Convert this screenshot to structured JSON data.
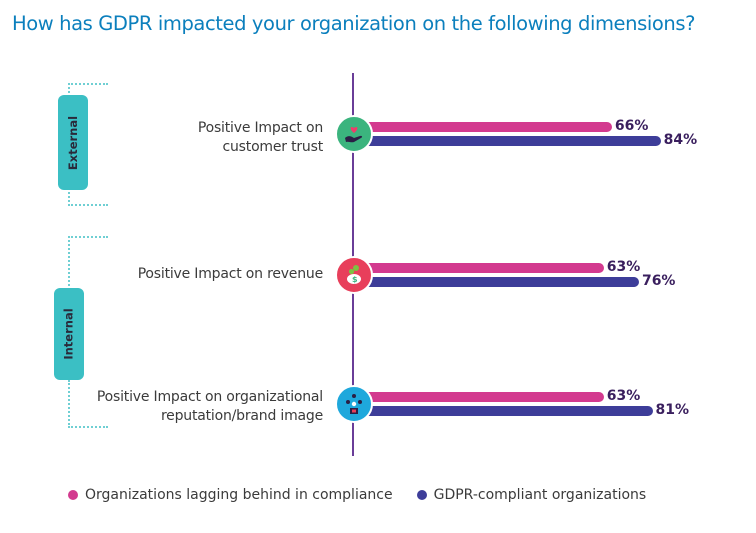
{
  "chart_data": {
    "type": "bar",
    "orientation": "horizontal",
    "title": "How has GDPR impacted your organization on the following dimensions?",
    "xlabel": "",
    "ylabel": "",
    "unit": "%",
    "grid": false,
    "legend_position": "bottom",
    "categories": [
      "Positive Impact on customer trust",
      "Positive Impact on revenue",
      "Positive Impact on organizational reputation/brand image"
    ],
    "category_lines": [
      [
        "Positive Impact on",
        "customer trust"
      ],
      [
        "Positive Impact on revenue"
      ],
      [
        "Positive Impact on organizational",
        "reputation/brand image"
      ]
    ],
    "category_groups": [
      {
        "name": "External",
        "categories": [
          0
        ]
      },
      {
        "name": "Internal",
        "categories": [
          1,
          2
        ]
      }
    ],
    "series": [
      {
        "name": "Organizations lagging behind in compliance",
        "color": "#d33a8f",
        "values": [
          66,
          63,
          63
        ]
      },
      {
        "name": "GDPR-compliant organizations",
        "color": "#3d3d99",
        "values": [
          84,
          76,
          81
        ]
      }
    ],
    "data_labels": [
      [
        "66%",
        "63%",
        "63%"
      ],
      [
        "84%",
        "76%",
        "81%"
      ]
    ],
    "icons": [
      {
        "name": "hand-heart-icon",
        "color": "#3bb47e"
      },
      {
        "name": "piggy-bank-icon",
        "color": "#e83f5b"
      },
      {
        "name": "people-network-icon",
        "color": "#1ea8dc"
      }
    ]
  }
}
